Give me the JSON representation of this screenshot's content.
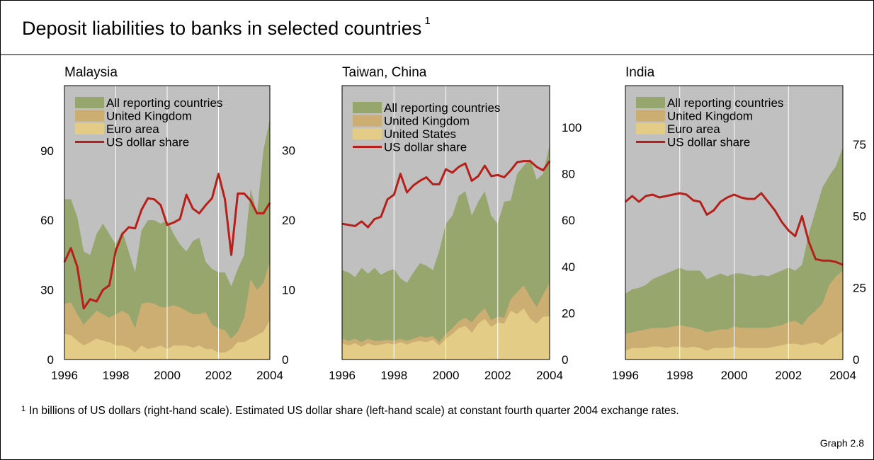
{
  "title": "Deposit liabilities to banks in selected countries",
  "title_note": "1",
  "footnote": {
    "mark": "1",
    "text": "In billions of US dollars (right-hand scale). Estimated US dollar share (left-hand scale) at constant fourth quarter 2004 exchange rates."
  },
  "graph_number": "Graph 2.8",
  "colors": {
    "plot_bg": "#c0c0c0",
    "all_reporting": "#96a66c",
    "united_kingdom": "#ccae72",
    "euro_or_us": "#e3cd86",
    "usd_share": "#b5201b"
  },
  "chart_data": [
    {
      "type": "area",
      "title": "Malaysia",
      "x_ticks": [
        "1996",
        "1998",
        "2000",
        "2002",
        "2004"
      ],
      "x_range": [
        1996,
        2004
      ],
      "left_axis": {
        "ticks": [
          0,
          30,
          60,
          90
        ],
        "range": [
          0,
          118
        ]
      },
      "right_axis": {
        "ticks": [
          0,
          10,
          20,
          30
        ],
        "range": [
          0,
          39.3
        ]
      },
      "legend": [
        "All reporting countries",
        "United Kingdom",
        "Euro area",
        "US dollar share"
      ],
      "x": [
        1996,
        1996.25,
        1996.5,
        1996.75,
        1997,
        1997.25,
        1997.5,
        1997.75,
        1998,
        1998.25,
        1998.5,
        1998.75,
        1999,
        1999.25,
        1999.5,
        1999.75,
        2000,
        2000.25,
        2000.5,
        2000.75,
        2001,
        2001.25,
        2001.5,
        2001.75,
        2002,
        2002.25,
        2002.5,
        2002.75,
        2003,
        2003.25,
        2003.5,
        2003.75,
        2004
      ],
      "series": [
        {
          "name": "Euro area",
          "values": [
            3.7,
            3.5,
            2.7,
            2.0,
            2.5,
            3.0,
            2.7,
            2.5,
            2.0,
            2.0,
            1.7,
            1.0,
            2.0,
            1.5,
            1.7,
            2.0,
            1.5,
            2.0,
            2.0,
            2.0,
            1.7,
            2.0,
            1.5,
            1.5,
            1.0,
            1.0,
            1.5,
            2.5,
            2.5,
            3.0,
            3.5,
            4.0,
            5.7
          ]
        },
        {
          "name": "United Kingdom",
          "values": [
            8.0,
            8.2,
            6.5,
            5.0,
            6.0,
            7.0,
            6.5,
            6.0,
            6.5,
            7.0,
            6.5,
            4.5,
            8.0,
            8.2,
            8.0,
            7.5,
            7.5,
            7.8,
            7.5,
            7.0,
            6.5,
            6.5,
            6.8,
            5.0,
            4.5,
            4.2,
            3.0,
            4.0,
            6.0,
            11.5,
            10.0,
            11.0,
            14.0
          ]
        },
        {
          "name": "All reporting countries",
          "values": [
            23.0,
            23.0,
            20.5,
            15.5,
            15.0,
            18.0,
            19.5,
            18.0,
            16.5,
            18.5,
            15.5,
            12.5,
            18.5,
            20.0,
            20.0,
            19.5,
            20.0,
            18.0,
            16.5,
            15.5,
            17.0,
            17.5,
            14.0,
            13.0,
            12.5,
            12.5,
            10.5,
            13.0,
            15.0,
            24.5,
            21.0,
            30.0,
            34.5
          ]
        },
        {
          "name": "US dollar share",
          "axis": "left",
          "values": [
            42.0,
            48.0,
            40.0,
            22.0,
            26.0,
            25.0,
            30.0,
            32.0,
            47.0,
            54.0,
            57.0,
            56.5,
            64.5,
            69.5,
            69.0,
            66.5,
            58.0,
            59.0,
            60.5,
            71.0,
            65.0,
            63.0,
            66.5,
            69.5,
            80.0,
            69.0,
            45.0,
            71.5,
            71.5,
            68.5,
            63.0,
            63.0,
            67.5
          ]
        }
      ]
    },
    {
      "type": "area",
      "title": "Taiwan, China",
      "x_ticks": [
        "1996",
        "1998",
        "2000",
        "2002",
        "2004"
      ],
      "x_range": [
        1996,
        2004
      ],
      "left_axis": {
        "ticks": [],
        "range": [
          0,
          118
        ]
      },
      "right_axis": {
        "ticks": [
          0,
          20,
          40,
          60,
          80,
          100
        ],
        "range": [
          0,
          118
        ]
      },
      "legend": [
        "All reporting countries",
        "United Kingdom",
        "United States",
        "US dollar share"
      ],
      "x": [
        1996,
        1996.25,
        1996.5,
        1996.75,
        1997,
        1997.25,
        1997.5,
        1997.75,
        1998,
        1998.25,
        1998.5,
        1998.75,
        1999,
        1999.25,
        1999.5,
        1999.75,
        2000,
        2000.25,
        2000.5,
        2000.75,
        2001,
        2001.25,
        2001.5,
        2001.75,
        2002,
        2002.25,
        2002.5,
        2002.75,
        2003,
        2003.25,
        2003.5,
        2003.75,
        2004
      ],
      "series": [
        {
          "name": "United States",
          "values": [
            7.0,
            6.0,
            7.0,
            5.5,
            7.0,
            6.0,
            6.5,
            7.0,
            6.5,
            7.5,
            6.5,
            7.5,
            8.0,
            7.5,
            8.5,
            6.0,
            9.0,
            11.0,
            13.5,
            14.5,
            11.5,
            15.5,
            17.5,
            14.0,
            16.0,
            15.5,
            21.0,
            19.5,
            22.0,
            17.5,
            15.5,
            18.5,
            18.5
          ]
        },
        {
          "name": "United Kingdom",
          "values": [
            9.0,
            8.0,
            9.0,
            7.5,
            9.0,
            8.0,
            8.0,
            8.5,
            8.0,
            9.0,
            8.0,
            9.0,
            10.0,
            9.5,
            10.0,
            7.5,
            11.0,
            13.5,
            16.5,
            18.0,
            16.0,
            19.5,
            22.0,
            17.0,
            18.5,
            18.0,
            26.0,
            29.0,
            32.0,
            27.0,
            22.5,
            28.0,
            33.0
          ]
        },
        {
          "name": "All reporting countries",
          "values": [
            38.5,
            37.5,
            35.5,
            39.5,
            37.0,
            39.5,
            36.5,
            38.0,
            39.0,
            35.0,
            33.0,
            37.5,
            41.5,
            40.5,
            38.5,
            47.0,
            58.5,
            62.0,
            70.5,
            72.5,
            62.0,
            68.0,
            72.5,
            62.0,
            58.5,
            68.0,
            68.5,
            80.0,
            83.5,
            86.5,
            77.5,
            80.0,
            92.5
          ]
        },
        {
          "name": "US dollar share",
          "axis": "left",
          "values": [
            58.5,
            58.0,
            57.5,
            59.5,
            57.0,
            60.5,
            61.5,
            69.0,
            71.0,
            80.0,
            72.0,
            75.0,
            77.0,
            78.5,
            75.5,
            75.5,
            82.0,
            80.5,
            83.0,
            84.5,
            77.0,
            79.0,
            83.5,
            79.0,
            79.5,
            78.5,
            81.5,
            85.0,
            85.5,
            85.5,
            83.0,
            81.5,
            85.5
          ]
        }
      ]
    },
    {
      "type": "area",
      "title": "India",
      "x_ticks": [
        "1996",
        "1998",
        "2000",
        "2002",
        "2004"
      ],
      "x_range": [
        1996,
        2004
      ],
      "left_axis": {
        "ticks": [],
        "range": [
          0,
          95.5
        ]
      },
      "right_axis": {
        "ticks": [
          0,
          25,
          50,
          75
        ],
        "range": [
          0,
          95.5
        ]
      },
      "legend": [
        "All reporting countries",
        "United Kingdom",
        "Euro area",
        "US dollar share"
      ],
      "x": [
        1996,
        1996.25,
        1996.5,
        1996.75,
        1997,
        1997.25,
        1997.5,
        1997.75,
        1998,
        1998.25,
        1998.5,
        1998.75,
        1999,
        1999.25,
        1999.5,
        1999.75,
        2000,
        2000.25,
        2000.5,
        2000.75,
        2001,
        2001.25,
        2001.5,
        2001.75,
        2002,
        2002.25,
        2002.5,
        2002.75,
        2003,
        2003.25,
        2003.5,
        2003.75,
        2004
      ],
      "series": [
        {
          "name": "Euro area",
          "values": [
            3.0,
            4.0,
            4.0,
            4.0,
            4.5,
            4.5,
            4.0,
            4.5,
            4.5,
            4.0,
            4.5,
            4.0,
            3.0,
            4.0,
            4.0,
            4.0,
            4.5,
            4.0,
            4.0,
            4.0,
            4.0,
            4.0,
            4.5,
            5.0,
            5.5,
            5.5,
            5.0,
            5.5,
            6.0,
            5.0,
            7.0,
            8.0,
            10.0
          ]
        },
        {
          "name": "United Kingdom",
          "values": [
            9.0,
            9.5,
            10.0,
            10.5,
            11.0,
            11.0,
            11.0,
            11.5,
            12.0,
            11.5,
            11.0,
            10.5,
            9.5,
            10.0,
            10.5,
            10.5,
            11.5,
            11.0,
            11.0,
            11.0,
            11.0,
            11.0,
            11.5,
            12.0,
            13.0,
            13.5,
            12.0,
            15.0,
            17.0,
            19.5,
            26.0,
            29.0,
            31.0
          ]
        },
        {
          "name": "All reporting countries",
          "values": [
            23.0,
            24.5,
            25.0,
            26.0,
            28.0,
            29.0,
            30.0,
            31.0,
            32.0,
            31.0,
            31.0,
            31.0,
            28.0,
            29.0,
            30.0,
            29.0,
            30.0,
            30.0,
            29.5,
            29.0,
            29.5,
            29.0,
            30.0,
            31.0,
            32.0,
            31.0,
            33.0,
            44.0,
            52.0,
            60.0,
            64.0,
            67.5,
            74.0
          ]
        },
        {
          "name": "US dollar share",
          "axis": "left",
          "values": [
            55.0,
            57.0,
            55.0,
            57.0,
            57.5,
            56.5,
            57.0,
            57.5,
            58.0,
            57.5,
            55.5,
            55.0,
            50.5,
            52.0,
            55.0,
            56.5,
            57.5,
            56.5,
            56.0,
            56.0,
            58.0,
            55.0,
            52.0,
            48.0,
            45.0,
            43.0,
            50.0,
            41.0,
            35.0,
            34.5,
            34.5,
            34.0,
            33.0
          ]
        }
      ]
    }
  ]
}
